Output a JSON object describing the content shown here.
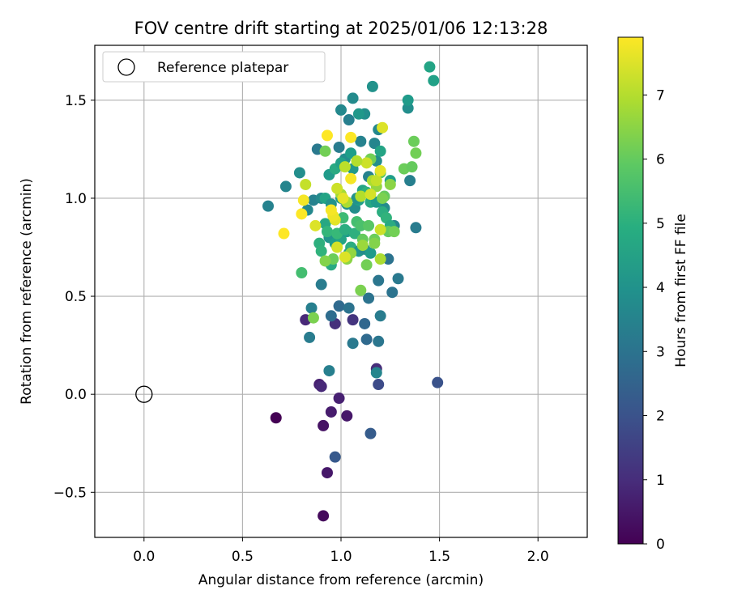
{
  "chart_data": {
    "type": "scatter",
    "title": "FOV centre drift starting at 2025/01/06 12:13:28",
    "xlabel": "Angular distance from reference (arcmin)",
    "ylabel": "Rotation from reference (arcmin)",
    "xlim": [
      -0.25,
      2.25
    ],
    "ylim": [
      -0.73,
      1.78
    ],
    "xticks": [
      0.0,
      0.5,
      1.0,
      1.5,
      2.0
    ],
    "xtick_labels": [
      "0.0",
      "0.5",
      "1.0",
      "1.5",
      "2.0"
    ],
    "yticks": [
      -0.5,
      0.0,
      0.5,
      1.0,
      1.5
    ],
    "ytick_labels": [
      "−0.5",
      "0.0",
      "0.5",
      "1.0",
      "1.5"
    ],
    "grid": true,
    "legend": {
      "placement": "top-left",
      "entries": [
        {
          "label": "Reference platepar",
          "marker": "open-circle"
        }
      ]
    },
    "reference_point": {
      "x": 0.0,
      "y": 0.0
    },
    "colorbar": {
      "label": "Hours from first FF file",
      "colormap": "viridis",
      "range": [
        0,
        7.9
      ],
      "ticks": [
        0,
        1,
        2,
        3,
        4,
        5,
        6,
        7
      ],
      "tick_labels": [
        "0",
        "1",
        "2",
        "3",
        "4",
        "5",
        "6",
        "7"
      ]
    },
    "points": [
      [
        0.67,
        -0.12,
        0.0
      ],
      [
        0.91,
        -0.62,
        0.2
      ],
      [
        0.93,
        -0.4,
        0.5
      ],
      [
        0.91,
        -0.16,
        0.4
      ],
      [
        1.03,
        -0.11,
        0.5
      ],
      [
        0.95,
        -0.09,
        0.6
      ],
      [
        0.99,
        -0.02,
        0.7
      ],
      [
        0.89,
        0.05,
        0.7
      ],
      [
        0.9,
        0.04,
        0.9
      ],
      [
        1.18,
        0.13,
        1.0
      ],
      [
        1.19,
        0.05,
        1.8
      ],
      [
        1.49,
        0.06,
        2.0
      ],
      [
        1.15,
        -0.2,
        2.3
      ],
      [
        0.97,
        -0.32,
        2.2
      ],
      [
        0.82,
        0.38,
        0.9
      ],
      [
        0.97,
        0.36,
        1.1
      ],
      [
        1.06,
        0.38,
        1.2
      ],
      [
        0.95,
        0.4,
        2.8
      ],
      [
        0.99,
        0.45,
        2.7
      ],
      [
        1.04,
        0.44,
        3.0
      ],
      [
        1.12,
        0.36,
        2.6
      ],
      [
        1.13,
        0.28,
        2.7
      ],
      [
        1.06,
        0.26,
        3.2
      ],
      [
        1.19,
        0.27,
        3.1
      ],
      [
        0.84,
        0.29,
        3.3
      ],
      [
        0.85,
        0.44,
        3.4
      ],
      [
        0.94,
        0.12,
        3.4
      ],
      [
        1.18,
        0.11,
        3.6
      ],
      [
        1.2,
        0.4,
        3.3
      ],
      [
        1.14,
        0.49,
        3.0
      ],
      [
        1.19,
        0.58,
        3.1
      ],
      [
        1.26,
        0.52,
        3.0
      ],
      [
        1.29,
        0.59,
        3.2
      ],
      [
        1.24,
        0.69,
        3.0
      ],
      [
        1.38,
        0.85,
        3.3
      ],
      [
        1.27,
        0.86,
        3.6
      ],
      [
        1.22,
        0.95,
        3.8
      ],
      [
        1.35,
        1.09,
        3.4
      ],
      [
        1.14,
        1.11,
        3.5
      ],
      [
        1.18,
        1.19,
        3.9
      ],
      [
        1.06,
        1.51,
        3.8
      ],
      [
        1.16,
        1.57,
        4.0
      ],
      [
        1.04,
        1.4,
        3.4
      ],
      [
        1.0,
        1.45,
        3.7
      ],
      [
        1.12,
        1.43,
        3.9
      ],
      [
        1.09,
        1.43,
        4.2
      ],
      [
        1.19,
        1.35,
        3.7
      ],
      [
        1.17,
        1.28,
        3.6
      ],
      [
        1.1,
        1.29,
        3.5
      ],
      [
        0.99,
        1.26,
        3.3
      ],
      [
        0.88,
        1.25,
        3.2
      ],
      [
        1.02,
        1.2,
        3.9
      ],
      [
        1.05,
        1.23,
        4.4
      ],
      [
        1.2,
        1.24,
        4.6
      ],
      [
        1.34,
        1.46,
        3.9
      ],
      [
        1.34,
        1.5,
        4.3
      ],
      [
        1.47,
        1.6,
        4.5
      ],
      [
        1.45,
        1.67,
        4.6
      ],
      [
        1.25,
        1.09,
        4.4
      ],
      [
        0.79,
        1.13,
        3.9
      ],
      [
        0.72,
        1.06,
        3.6
      ],
      [
        0.63,
        0.96,
        3.5
      ],
      [
        0.83,
        0.94,
        3.7
      ],
      [
        0.86,
        0.99,
        3.5
      ],
      [
        0.9,
        1.0,
        3.8
      ],
      [
        0.94,
        1.12,
        4.3
      ],
      [
        0.97,
        1.15,
        4.8
      ],
      [
        1.0,
        1.0,
        4.2
      ],
      [
        1.03,
        0.97,
        4.0
      ],
      [
        1.07,
        0.95,
        3.9
      ],
      [
        1.09,
        0.99,
        4.4
      ],
      [
        1.11,
        1.04,
        4.6
      ],
      [
        1.13,
        1.03,
        5.0
      ],
      [
        1.15,
        0.98,
        4.7
      ],
      [
        1.18,
        0.98,
        4.3
      ],
      [
        1.21,
        0.93,
        4.9
      ],
      [
        1.23,
        0.9,
        5.1
      ],
      [
        1.25,
        0.86,
        4.8
      ],
      [
        0.9,
        0.56,
        3.3
      ],
      [
        0.94,
        0.8,
        4.1
      ],
      [
        0.97,
        0.77,
        4.4
      ],
      [
        1.0,
        0.79,
        4.6
      ],
      [
        1.03,
        0.83,
        4.4
      ],
      [
        1.05,
        0.75,
        4.9
      ],
      [
        1.07,
        0.82,
        5.0
      ],
      [
        1.09,
        0.73,
        4.1
      ],
      [
        1.12,
        0.74,
        3.8
      ],
      [
        1.15,
        0.72,
        4.3
      ],
      [
        0.92,
        0.87,
        4.7
      ],
      [
        0.95,
        0.66,
        4.8
      ],
      [
        0.89,
        0.77,
        5.0
      ],
      [
        0.9,
        0.73,
        5.1
      ],
      [
        0.93,
        0.83,
        5.2
      ],
      [
        0.98,
        0.82,
        5.3
      ],
      [
        1.01,
        0.9,
        5.4
      ],
      [
        1.08,
        0.88,
        5.5
      ],
      [
        0.8,
        0.62,
        5.5
      ],
      [
        1.02,
        0.84,
        4.9
      ],
      [
        1.06,
        1.15,
        4.2
      ],
      [
        1.0,
        1.18,
        4.5
      ],
      [
        1.08,
        1.0,
        4.0
      ],
      [
        0.92,
        1.0,
        4.6
      ],
      [
        0.95,
        0.97,
        4.0
      ],
      [
        1.04,
        0.72,
        4.5
      ],
      [
        0.97,
        0.89,
        5.2
      ],
      [
        1.1,
        0.86,
        5.6
      ],
      [
        1.14,
        0.86,
        5.8
      ],
      [
        1.11,
        0.79,
        6.0
      ],
      [
        1.17,
        0.79,
        6.1
      ],
      [
        1.2,
        1.13,
        5.8
      ],
      [
        1.22,
        1.01,
        6.0
      ],
      [
        1.24,
        0.83,
        6.0
      ],
      [
        1.27,
        0.83,
        6.2
      ],
      [
        1.32,
        1.15,
        6.1
      ],
      [
        1.36,
        1.16,
        6.0
      ],
      [
        1.37,
        1.29,
        6.1
      ],
      [
        1.38,
        1.23,
        6.2
      ],
      [
        1.15,
        1.2,
        6.2
      ],
      [
        0.92,
        1.24,
        6.2
      ],
      [
        0.96,
        0.69,
        6.1
      ],
      [
        1.13,
        0.66,
        6.2
      ],
      [
        1.1,
        0.53,
        6.3
      ],
      [
        0.86,
        0.39,
        6.3
      ],
      [
        0.92,
        0.68,
        6.4
      ],
      [
        1.03,
        0.69,
        6.5
      ],
      [
        1.05,
        0.72,
        6.6
      ],
      [
        1.11,
        0.76,
        6.7
      ],
      [
        1.2,
        0.69,
        6.9
      ],
      [
        1.17,
        0.77,
        6.4
      ],
      [
        1.0,
        1.02,
        6.8
      ],
      [
        1.03,
        0.98,
        6.9
      ],
      [
        1.1,
        1.01,
        7.0
      ],
      [
        1.18,
        1.06,
        6.6
      ],
      [
        1.25,
        1.07,
        6.5
      ],
      [
        1.21,
        1.0,
        6.3
      ],
      [
        1.16,
        1.09,
        6.9
      ],
      [
        1.2,
        0.84,
        7.3
      ],
      [
        1.15,
        1.02,
        7.4
      ],
      [
        1.18,
        1.09,
        7.2
      ],
      [
        1.13,
        1.18,
        7.3
      ],
      [
        1.21,
        1.36,
        7.5
      ],
      [
        1.2,
        1.14,
        7.6
      ],
      [
        1.08,
        1.19,
        7.0
      ],
      [
        1.02,
        1.16,
        7.1
      ],
      [
        0.82,
        1.07,
        7.2
      ],
      [
        0.98,
        1.05,
        7.3
      ],
      [
        0.98,
        0.75,
        7.4
      ],
      [
        1.02,
        0.7,
        7.5
      ],
      [
        0.97,
        0.89,
        7.6
      ],
      [
        0.87,
        0.86,
        7.5
      ],
      [
        0.96,
        0.91,
        7.7
      ],
      [
        0.95,
        0.94,
        7.8
      ],
      [
        0.81,
        0.99,
        7.8
      ],
      [
        0.8,
        0.92,
        7.9
      ],
      [
        0.71,
        0.82,
        7.9
      ],
      [
        0.93,
        1.32,
        7.9
      ],
      [
        1.05,
        1.31,
        7.9
      ],
      [
        1.05,
        1.1,
        7.8
      ],
      [
        1.01,
        1.0,
        7.6
      ]
    ]
  }
}
